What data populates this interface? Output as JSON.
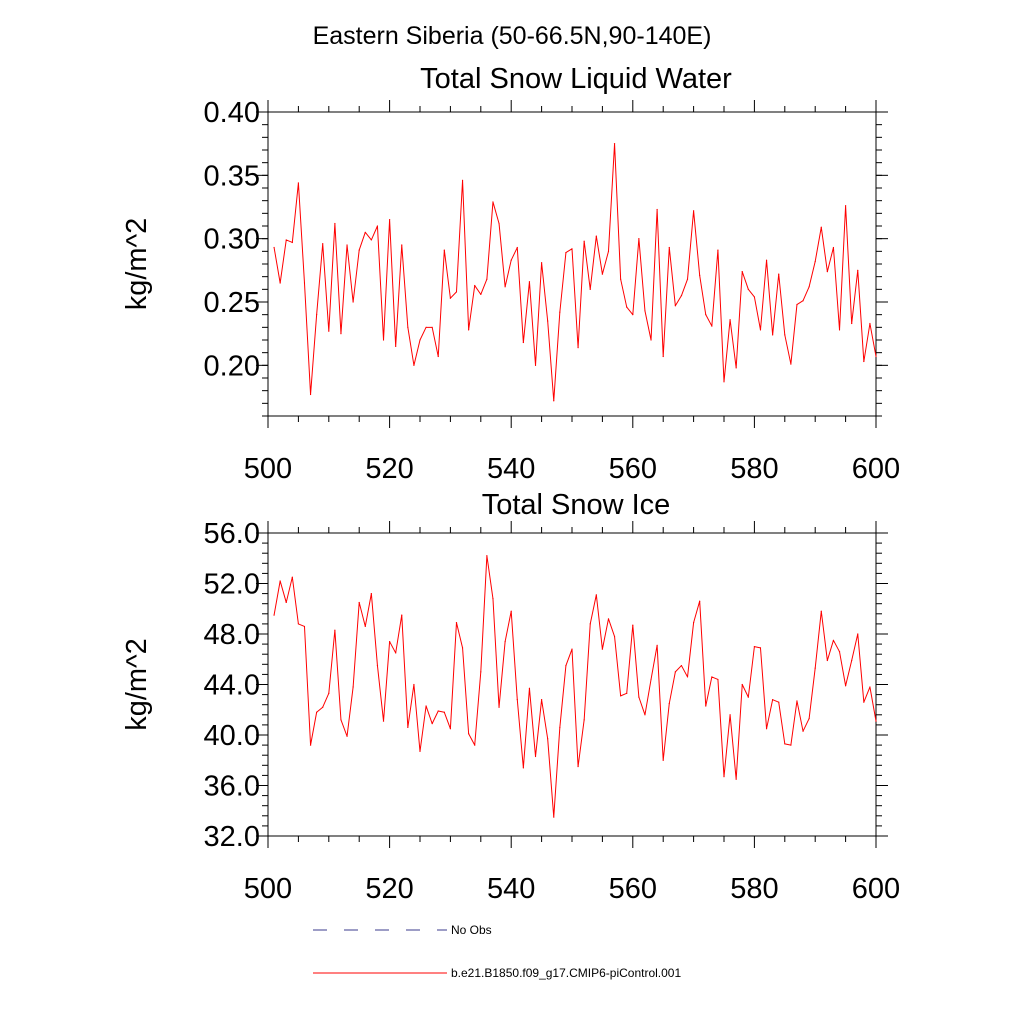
{
  "figure_title": "Eastern Siberia (50-66.5N,90-140E)",
  "colors": {
    "model_line": "#ff0000",
    "obs_line": "#3b3b8c",
    "axes": "#000000"
  },
  "legend": [
    {
      "label": "No Obs",
      "style": "dashed",
      "color": "#3b3b8c"
    },
    {
      "label": "b.e21.B1850.f09_g17.CMIP6-piControl.001",
      "style": "solid",
      "color": "#ff0000"
    }
  ],
  "chart_data": [
    {
      "type": "line",
      "title": "Total Snow Liquid Water",
      "xlabel": "",
      "ylabel": "kg/m^2",
      "xlim": [
        500,
        600
      ],
      "ylim": [
        0.16,
        0.4
      ],
      "xticks": [
        500,
        520,
        540,
        560,
        580,
        600
      ],
      "xtick_labels": [
        "500",
        "520",
        "540",
        "560",
        "580",
        "600"
      ],
      "yticks": [
        0.2,
        0.25,
        0.3,
        0.35,
        0.4
      ],
      "ytick_labels": [
        "0.20",
        "0.25",
        "0.30",
        "0.35",
        "0.40"
      ],
      "x_start": 501,
      "series": [
        {
          "name": "b.e21.B1850.f09_g17.CMIP6-piControl.001",
          "values": [
            0.293,
            0.265,
            0.299,
            0.297,
            0.344,
            0.265,
            0.177,
            0.24,
            0.296,
            0.227,
            0.312,
            0.225,
            0.295,
            0.25,
            0.291,
            0.305,
            0.299,
            0.31,
            0.22,
            0.315,
            0.215,
            0.295,
            0.23,
            0.2,
            0.22,
            0.23,
            0.23,
            0.207,
            0.291,
            0.253,
            0.258,
            0.346,
            0.228,
            0.263,
            0.256,
            0.268,
            0.329,
            0.312,
            0.262,
            0.283,
            0.293,
            0.218,
            0.266,
            0.2,
            0.281,
            0.235,
            0.172,
            0.242,
            0.289,
            0.292,
            0.214,
            0.298,
            0.26,
            0.302,
            0.272,
            0.29,
            0.375,
            0.268,
            0.246,
            0.24,
            0.3,
            0.243,
            0.22,
            0.323,
            0.207,
            0.293,
            0.247,
            0.255,
            0.268,
            0.322,
            0.271,
            0.24,
            0.231,
            0.291,
            0.187,
            0.236,
            0.198,
            0.274,
            0.26,
            0.254,
            0.228,
            0.283,
            0.224,
            0.272,
            0.224,
            0.201,
            0.248,
            0.251,
            0.262,
            0.282,
            0.309,
            0.274,
            0.293,
            0.228,
            0.326,
            0.233,
            0.275,
            0.203,
            0.233,
            0.207
          ]
        }
      ]
    },
    {
      "type": "line",
      "title": "Total Snow Ice",
      "xlabel": "",
      "ylabel": "kg/m^2",
      "xlim": [
        500,
        600
      ],
      "ylim": [
        32.0,
        56.0
      ],
      "xticks": [
        500,
        520,
        540,
        560,
        580,
        600
      ],
      "xtick_labels": [
        "500",
        "520",
        "540",
        "560",
        "580",
        "600"
      ],
      "yticks": [
        32.0,
        36.0,
        40.0,
        44.0,
        48.0,
        52.0,
        56.0
      ],
      "ytick_labels": [
        "32.0",
        "36.0",
        "40.0",
        "44.0",
        "48.0",
        "52.0",
        "56.0"
      ],
      "x_start": 501,
      "series": [
        {
          "name": "b.e21.B1850.f09_g17.CMIP6-piControl.001",
          "values": [
            49.5,
            52.2,
            50.5,
            52.5,
            48.8,
            48.6,
            39.2,
            41.8,
            42.2,
            43.3,
            48.3,
            41.2,
            39.9,
            43.8,
            50.5,
            48.6,
            51.2,
            45.5,
            41.1,
            47.4,
            46.5,
            49.5,
            40.6,
            44.0,
            38.7,
            42.3,
            40.9,
            41.9,
            41.8,
            40.5,
            48.9,
            46.9,
            40.1,
            39.2,
            45.0,
            54.2,
            50.8,
            42.2,
            47.4,
            49.8,
            42.8,
            37.4,
            43.7,
            38.3,
            42.8,
            39.7,
            33.5,
            40.6,
            45.5,
            46.8,
            37.5,
            41.2,
            48.8,
            51.1,
            46.8,
            49.2,
            47.8,
            43.1,
            43.3,
            48.7,
            43.0,
            41.6,
            44.4,
            47.1,
            38.0,
            42.5,
            45.0,
            45.5,
            44.6,
            48.9,
            50.6,
            42.3,
            44.6,
            44.4,
            36.7,
            41.6,
            36.5,
            44.0,
            43.0,
            47.0,
            46.9,
            40.5,
            42.8,
            42.6,
            39.3,
            39.2,
            42.7,
            40.3,
            41.3,
            45.3,
            49.8,
            45.9,
            47.5,
            46.6,
            43.9,
            45.9,
            48.0,
            42.6,
            43.8,
            41.1
          ]
        }
      ]
    }
  ]
}
